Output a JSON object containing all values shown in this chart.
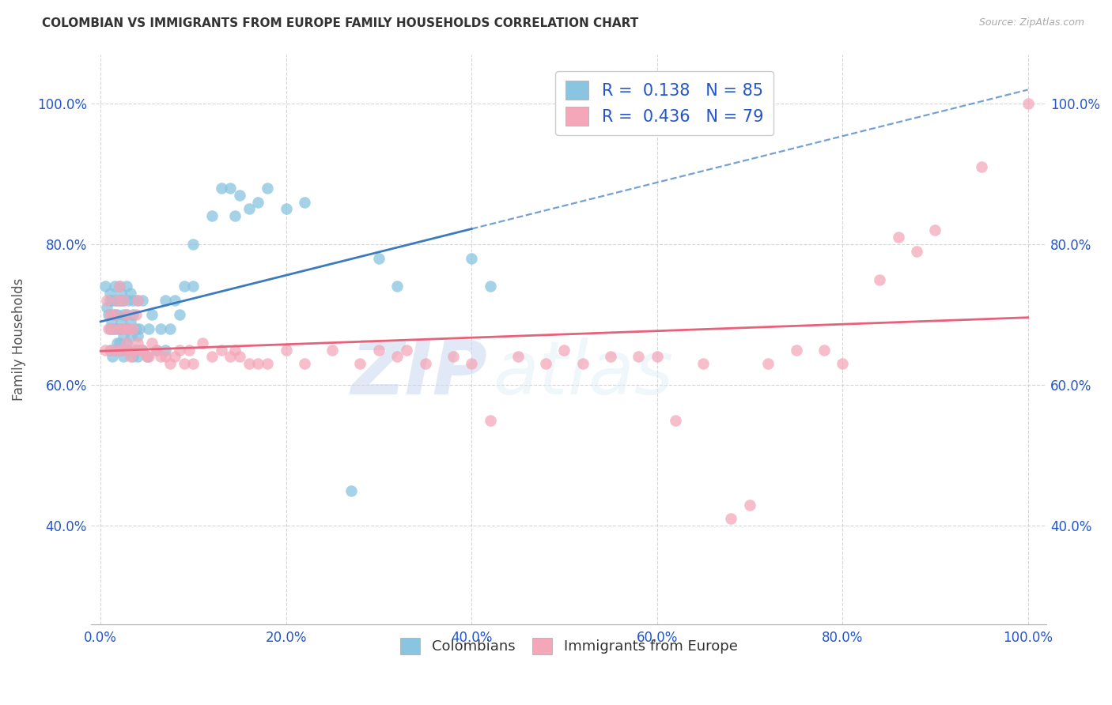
{
  "title": "COLOMBIAN VS IMMIGRANTS FROM EUROPE FAMILY HOUSEHOLDS CORRELATION CHART",
  "source": "Source: ZipAtlas.com",
  "ylabel": "Family Households",
  "x_tick_vals": [
    0,
    0.2,
    0.4,
    0.6,
    0.8,
    1.0
  ],
  "x_tick_labels": [
    "0.0%",
    "20.0%",
    "40.0%",
    "60.0%",
    "80.0%",
    "100.0%"
  ],
  "y_tick_vals": [
    0.4,
    0.6,
    0.8,
    1.0
  ],
  "y_tick_labels": [
    "40.0%",
    "60.0%",
    "80.0%",
    "100.0%"
  ],
  "xlim": [
    -0.01,
    1.02
  ],
  "ylim": [
    0.26,
    1.07
  ],
  "blue_color": "#89c4e1",
  "pink_color": "#f4a7b9",
  "blue_line_color": "#3a7abf",
  "pink_line_color": "#e8607a",
  "legend_text_color": "#2255cc",
  "r_blue": 0.138,
  "n_blue": 85,
  "r_pink": 0.436,
  "n_pink": 79,
  "watermark_zip": "ZIP",
  "watermark_atlas": "atlas",
  "blue_x": [
    0.005,
    0.007,
    0.008,
    0.01,
    0.01,
    0.01,
    0.01,
    0.012,
    0.012,
    0.013,
    0.013,
    0.013,
    0.015,
    0.015,
    0.015,
    0.015,
    0.015,
    0.017,
    0.017,
    0.018,
    0.018,
    0.018,
    0.02,
    0.02,
    0.02,
    0.02,
    0.022,
    0.022,
    0.022,
    0.022,
    0.022,
    0.025,
    0.025,
    0.025,
    0.025,
    0.027,
    0.028,
    0.028,
    0.028,
    0.028,
    0.03,
    0.03,
    0.03,
    0.032,
    0.032,
    0.033,
    0.035,
    0.035,
    0.035,
    0.038,
    0.038,
    0.04,
    0.04,
    0.04,
    0.042,
    0.045,
    0.045,
    0.05,
    0.052,
    0.055,
    0.06,
    0.065,
    0.07,
    0.07,
    0.075,
    0.08,
    0.085,
    0.09,
    0.1,
    0.1,
    0.12,
    0.13,
    0.14,
    0.145,
    0.15,
    0.16,
    0.17,
    0.18,
    0.2,
    0.22,
    0.27,
    0.3,
    0.32,
    0.4,
    0.42
  ],
  "blue_y": [
    0.74,
    0.71,
    0.7,
    0.73,
    0.68,
    0.65,
    0.72,
    0.69,
    0.72,
    0.68,
    0.7,
    0.64,
    0.72,
    0.74,
    0.68,
    0.65,
    0.7,
    0.68,
    0.72,
    0.66,
    0.7,
    0.65,
    0.68,
    0.72,
    0.74,
    0.66,
    0.68,
    0.72,
    0.65,
    0.69,
    0.73,
    0.67,
    0.7,
    0.64,
    0.72,
    0.68,
    0.66,
    0.7,
    0.74,
    0.65,
    0.68,
    0.72,
    0.65,
    0.69,
    0.73,
    0.67,
    0.7,
    0.64,
    0.72,
    0.68,
    0.65,
    0.72,
    0.67,
    0.64,
    0.68,
    0.72,
    0.65,
    0.64,
    0.68,
    0.7,
    0.65,
    0.68,
    0.72,
    0.65,
    0.68,
    0.72,
    0.7,
    0.74,
    0.8,
    0.74,
    0.84,
    0.88,
    0.88,
    0.84,
    0.87,
    0.85,
    0.86,
    0.88,
    0.85,
    0.86,
    0.45,
    0.78,
    0.74,
    0.78,
    0.74
  ],
  "pink_x": [
    0.005,
    0.007,
    0.008,
    0.01,
    0.012,
    0.013,
    0.015,
    0.018,
    0.018,
    0.02,
    0.02,
    0.022,
    0.025,
    0.025,
    0.028,
    0.028,
    0.03,
    0.03,
    0.032,
    0.035,
    0.035,
    0.038,
    0.04,
    0.04,
    0.042,
    0.045,
    0.05,
    0.052,
    0.055,
    0.06,
    0.065,
    0.07,
    0.075,
    0.08,
    0.085,
    0.09,
    0.095,
    0.1,
    0.11,
    0.12,
    0.13,
    0.14,
    0.145,
    0.15,
    0.16,
    0.17,
    0.18,
    0.2,
    0.22,
    0.25,
    0.28,
    0.3,
    0.32,
    0.33,
    0.35,
    0.38,
    0.4,
    0.42,
    0.45,
    0.48,
    0.5,
    0.52,
    0.55,
    0.58,
    0.6,
    0.62,
    0.65,
    0.68,
    0.7,
    0.72,
    0.75,
    0.78,
    0.8,
    0.84,
    0.86,
    0.88,
    0.9,
    0.95,
    1.0
  ],
  "pink_y": [
    0.65,
    0.72,
    0.68,
    0.7,
    0.65,
    0.68,
    0.7,
    0.72,
    0.65,
    0.68,
    0.74,
    0.65,
    0.68,
    0.72,
    0.66,
    0.7,
    0.65,
    0.68,
    0.64,
    0.68,
    0.65,
    0.7,
    0.66,
    0.72,
    0.65,
    0.65,
    0.64,
    0.64,
    0.66,
    0.65,
    0.64,
    0.64,
    0.63,
    0.64,
    0.65,
    0.63,
    0.65,
    0.63,
    0.66,
    0.64,
    0.65,
    0.64,
    0.65,
    0.64,
    0.63,
    0.63,
    0.63,
    0.65,
    0.63,
    0.65,
    0.63,
    0.65,
    0.64,
    0.65,
    0.63,
    0.64,
    0.63,
    0.55,
    0.64,
    0.63,
    0.65,
    0.63,
    0.64,
    0.64,
    0.64,
    0.55,
    0.63,
    0.41,
    0.43,
    0.63,
    0.65,
    0.65,
    0.63,
    0.75,
    0.81,
    0.79,
    0.82,
    0.91,
    1.0
  ]
}
